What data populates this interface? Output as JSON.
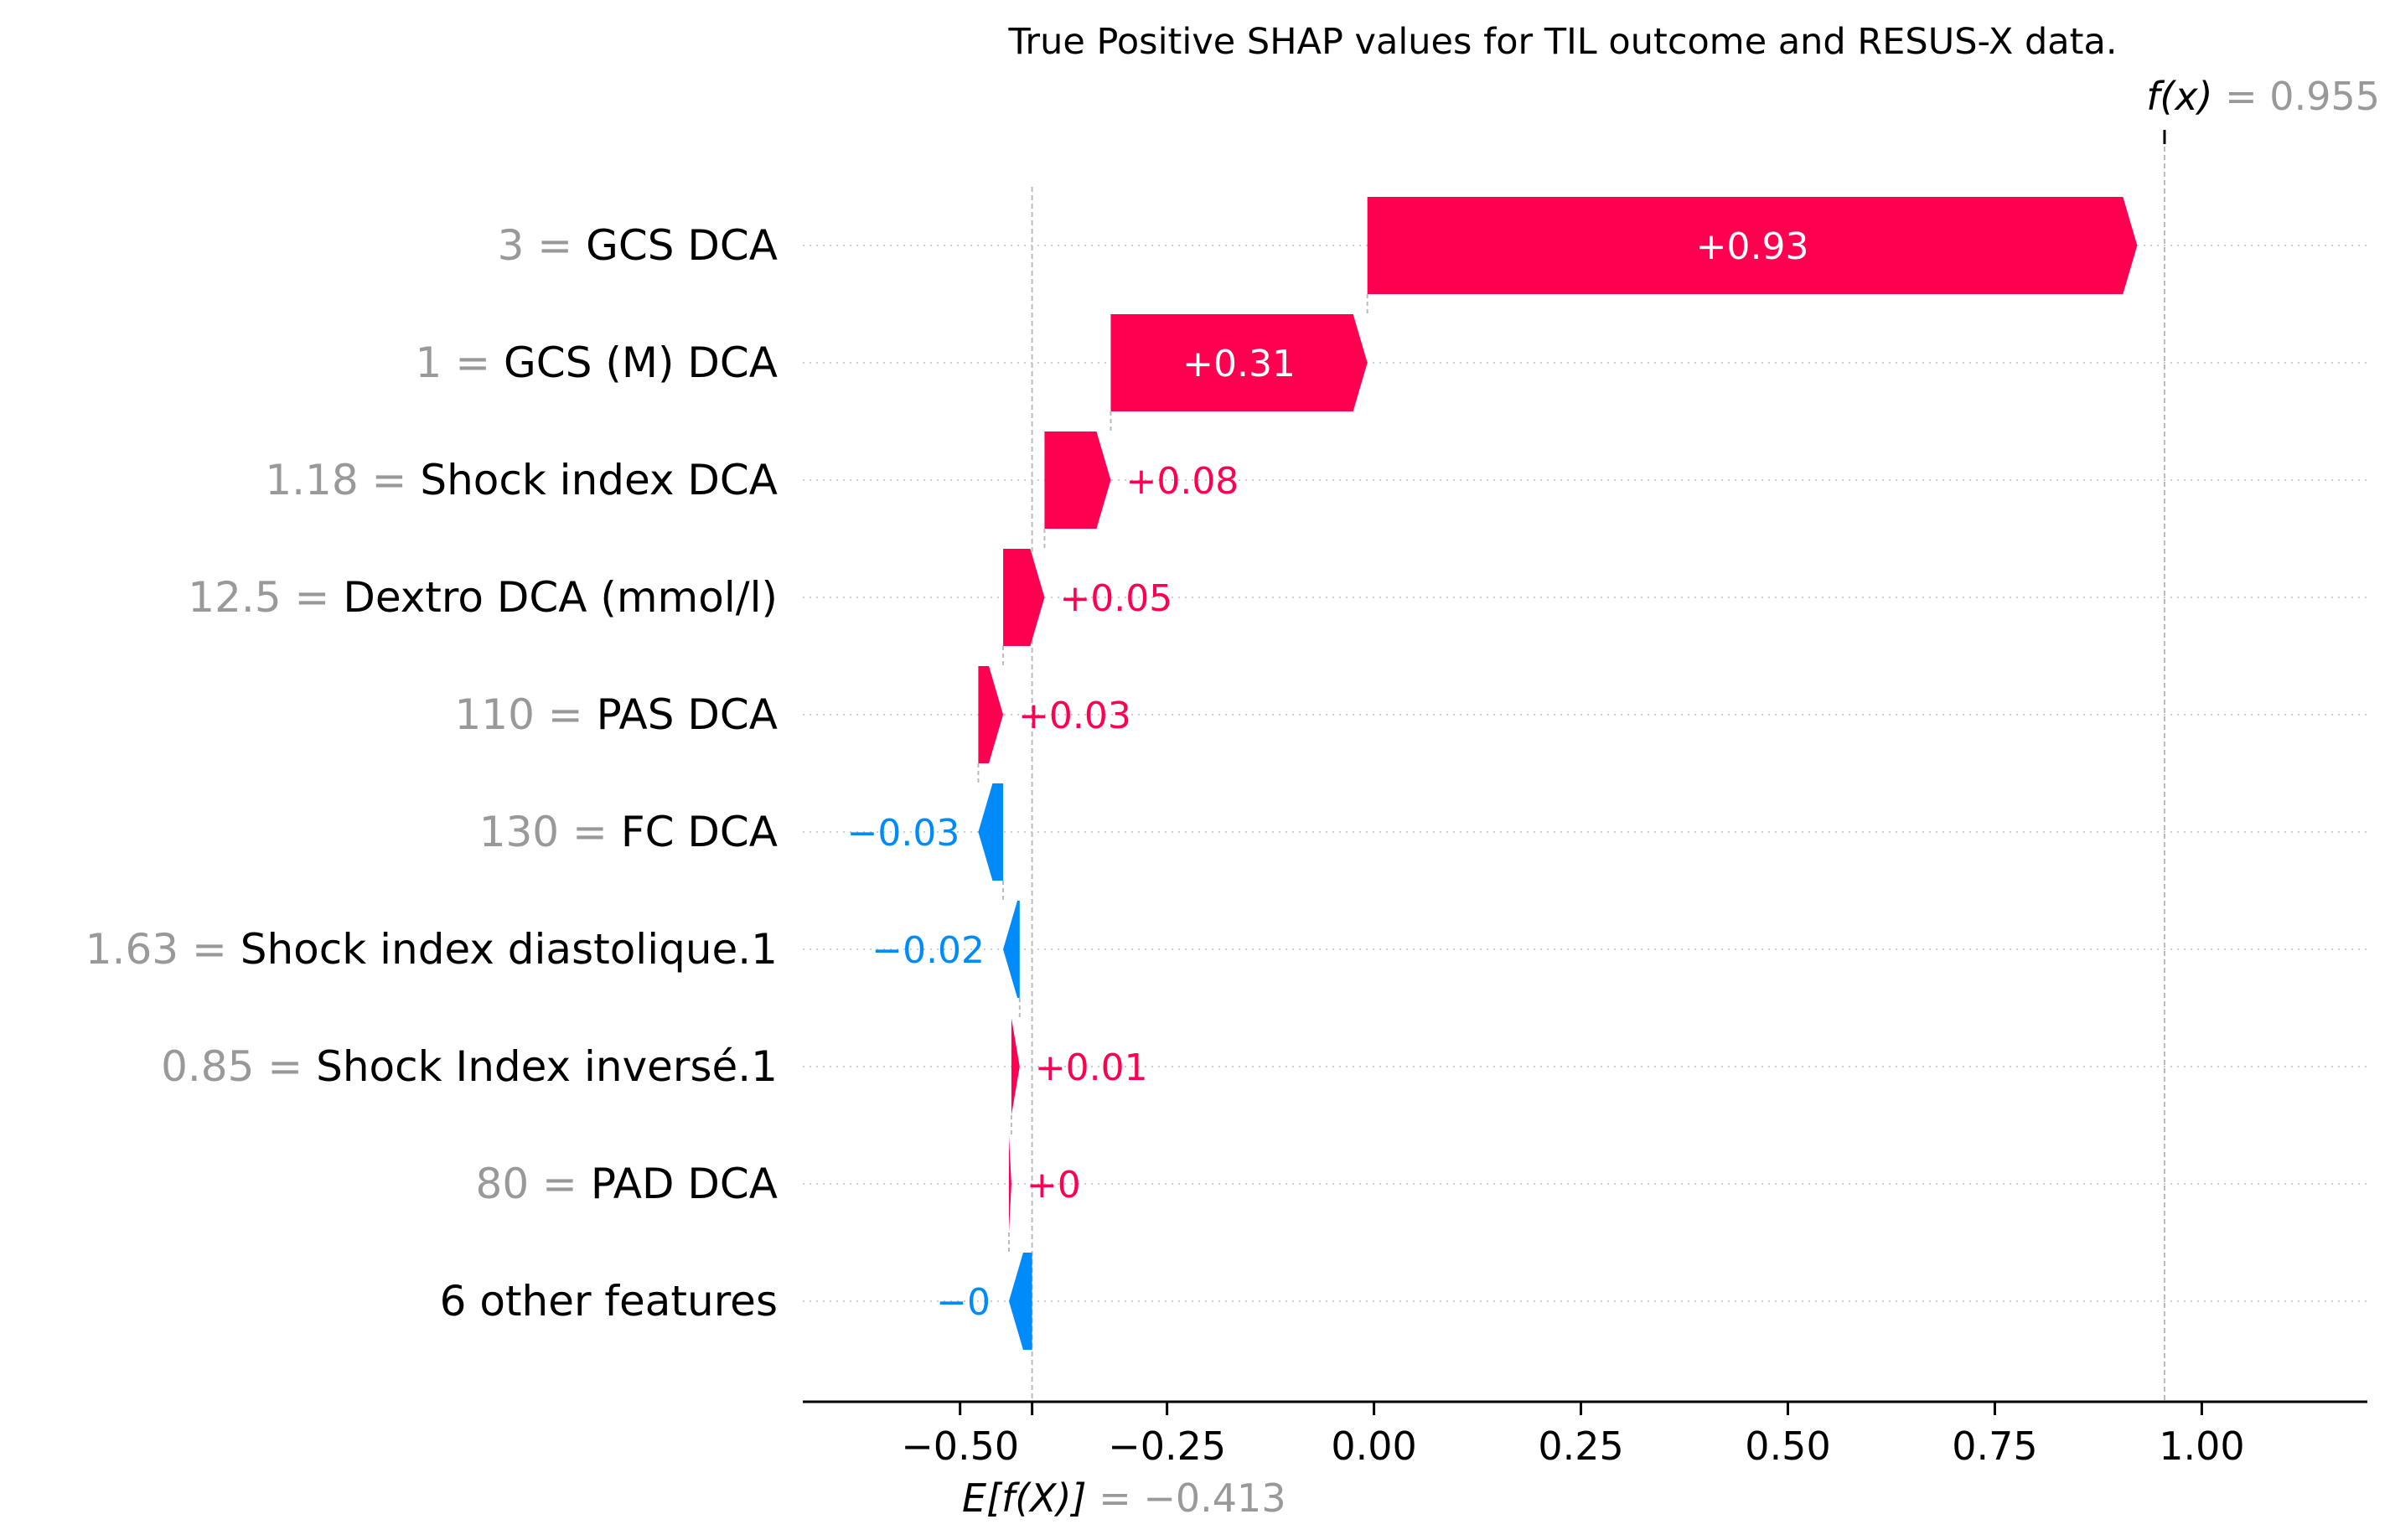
{
  "chart_data": {
    "type": "waterfall",
    "title": "True Positive SHAP values for TIL outcome and RESUS-X data.",
    "base_value": -0.413,
    "base_value_label": "= −0.413",
    "base_value_symbol": "E[f(X)]",
    "output_value": 0.955,
    "output_value_label": "= 0.955",
    "output_value_symbol": "f(x)",
    "xlim": [
      -0.69,
      1.2
    ],
    "x_ticks": [
      -0.5,
      -0.25,
      0.0,
      0.25,
      0.5,
      0.75,
      1.0
    ],
    "x_tick_labels": [
      "−0.50",
      "−0.25",
      "0.00",
      "0.25",
      "0.50",
      "0.75",
      "1.00"
    ],
    "features": [
      {
        "value": "3",
        "name": "GCS DCA",
        "shap": 0.93,
        "label": "+0.93"
      },
      {
        "value": "1",
        "name": "GCS (M) DCA",
        "shap": 0.31,
        "label": "+0.31"
      },
      {
        "value": "1.18",
        "name": "Shock index DCA",
        "shap": 0.08,
        "label": "+0.08"
      },
      {
        "value": "12.5",
        "name": "Dextro DCA (mmol/l)",
        "shap": 0.05,
        "label": "+0.05"
      },
      {
        "value": "110",
        "name": "PAS DCA",
        "shap": 0.03,
        "label": "+0.03"
      },
      {
        "value": "130",
        "name": "FC  DCA",
        "shap": -0.03,
        "label": "−0.03"
      },
      {
        "value": "1.63",
        "name": "Shock index diastolique.1",
        "shap": -0.02,
        "label": "−0.02"
      },
      {
        "value": "0.85",
        "name": "Shock Index inversé.1",
        "shap": 0.01,
        "label": "+0.01"
      },
      {
        "value": "80",
        "name": "PAD DCA",
        "shap": 0.003,
        "label": "+0"
      },
      {
        "value": "",
        "name": "6 other features",
        "shap": -0.028,
        "label": "−0"
      }
    ],
    "colors": {
      "positive": "#ff0051",
      "negative": "#008bfb",
      "axis": "#000000",
      "muted": "#999999",
      "grid": "#cccccc"
    }
  }
}
